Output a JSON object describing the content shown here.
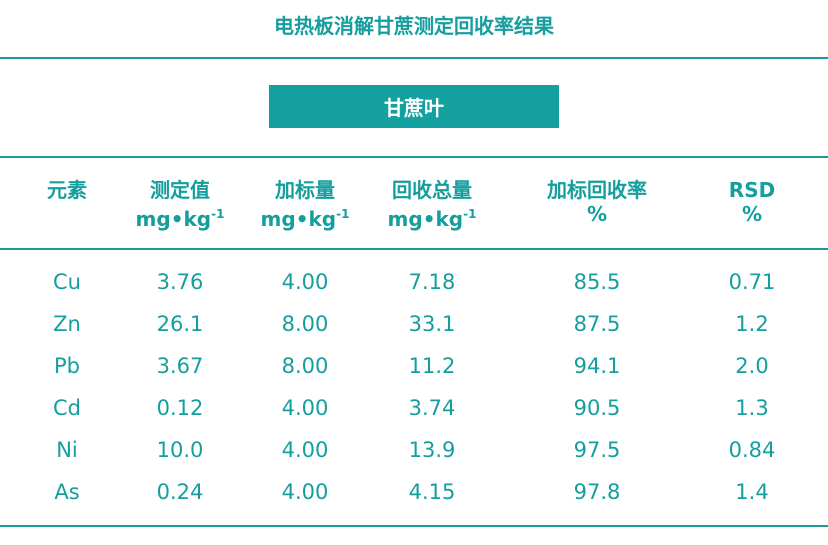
{
  "title": "电热板消解甘蔗测定回收率结果",
  "section_label": "甘蔗叶",
  "accent_color": "#15a0a0",
  "headers": [
    {
      "label": "元素",
      "unit": ""
    },
    {
      "label": "测定值",
      "unit": "mg•kg",
      "sup": "-1"
    },
    {
      "label": "加标量",
      "unit": "mg•kg",
      "sup": "-1"
    },
    {
      "label": "回收总量",
      "unit": "mg•kg",
      "sup": "-1"
    },
    {
      "label": "加标回收率",
      "unit": "%"
    },
    {
      "label": "RSD",
      "unit": "%"
    }
  ],
  "rows": [
    [
      "Cu",
      "3.76",
      "4.00",
      "7.18",
      "85.5",
      "0.71"
    ],
    [
      "Zn",
      "26.1",
      "8.00",
      "33.1",
      "87.5",
      "1.2"
    ],
    [
      "Pb",
      "3.67",
      "8.00",
      "11.2",
      "94.1",
      "2.0"
    ],
    [
      "Cd",
      "0.12",
      "4.00",
      "3.74",
      "90.5",
      "1.3"
    ],
    [
      "Ni",
      "10.0",
      "4.00",
      "13.9",
      "97.5",
      "0.84"
    ],
    [
      "As",
      "0.24",
      "4.00",
      "4.15",
      "97.8",
      "1.4"
    ]
  ]
}
